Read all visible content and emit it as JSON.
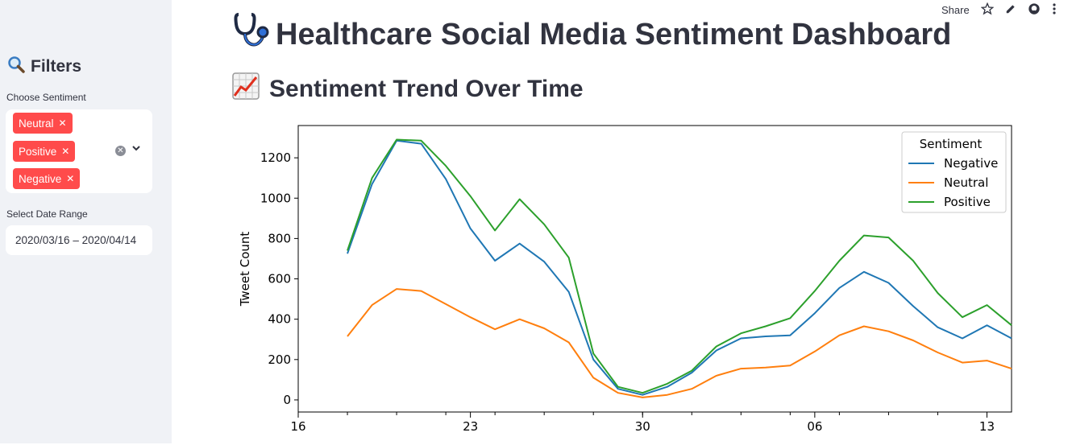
{
  "sidebar": {
    "title": "Filters",
    "title_icon": "magnifier-icon",
    "sentiment_label": "Choose Sentiment",
    "selected": [
      "Neutral",
      "Positive",
      "Negative"
    ],
    "date_label": "Select Date Range",
    "date_range": "2020/03/16 – 2020/04/14"
  },
  "toolbar": {
    "share_label": "Share"
  },
  "header": {
    "title": "Healthcare Social Media Sentiment Dashboard",
    "title_icon": "stethoscope-icon",
    "subtitle": "Sentiment Trend Over Time",
    "subtitle_icon": "chart-increasing-icon"
  },
  "chart_data": {
    "type": "line",
    "ylabel": "Tweet Count",
    "xlabel": "",
    "legend_title": "Sentiment",
    "legend_position": "top-right",
    "ylim": [
      -60,
      1360
    ],
    "yticks": [
      0,
      200,
      400,
      600,
      800,
      1000,
      1200
    ],
    "x_range": [
      "2020-03-16",
      "2020-04-14"
    ],
    "xticks": [
      {
        "date": "2020-03-16",
        "label": "16"
      },
      {
        "date": "2020-03-23",
        "label": "23"
      },
      {
        "date": "2020-03-30",
        "label": "30"
      },
      {
        "date": "2020-04-06",
        "label": "06"
      },
      {
        "date": "2020-04-13",
        "label": "13"
      }
    ],
    "x": [
      "2020-03-18",
      "2020-03-19",
      "2020-03-20",
      "2020-03-21",
      "2020-03-22",
      "2020-03-23",
      "2020-03-24",
      "2020-03-25",
      "2020-03-26",
      "2020-03-27",
      "2020-03-28",
      "2020-03-29",
      "2020-03-30",
      "2020-03-31",
      "2020-04-01",
      "2020-04-02",
      "2020-04-03",
      "2020-04-04",
      "2020-04-05",
      "2020-04-06",
      "2020-04-07",
      "2020-04-08",
      "2020-04-09",
      "2020-04-10",
      "2020-04-11",
      "2020-04-12",
      "2020-04-13",
      "2020-04-14"
    ],
    "series": [
      {
        "name": "Negative",
        "color": "#1f77b4",
        "values": [
          725,
          1070,
          1285,
          1270,
          1095,
          850,
          690,
          775,
          685,
          535,
          200,
          55,
          25,
          65,
          135,
          245,
          305,
          315,
          320,
          430,
          555,
          635,
          580,
          465,
          360,
          305,
          370,
          305
        ]
      },
      {
        "name": "Neutral",
        "color": "#ff7f0e",
        "values": [
          315,
          470,
          550,
          540,
          475,
          410,
          350,
          400,
          355,
          285,
          110,
          35,
          12,
          25,
          55,
          120,
          155,
          160,
          170,
          240,
          320,
          365,
          340,
          295,
          235,
          185,
          195,
          155
        ]
      },
      {
        "name": "Positive",
        "color": "#2ca02c",
        "values": [
          740,
          1100,
          1290,
          1285,
          1160,
          1010,
          840,
          995,
          870,
          705,
          230,
          65,
          35,
          80,
          145,
          265,
          330,
          365,
          405,
          540,
          690,
          815,
          805,
          690,
          530,
          410,
          470,
          370
        ]
      }
    ]
  }
}
